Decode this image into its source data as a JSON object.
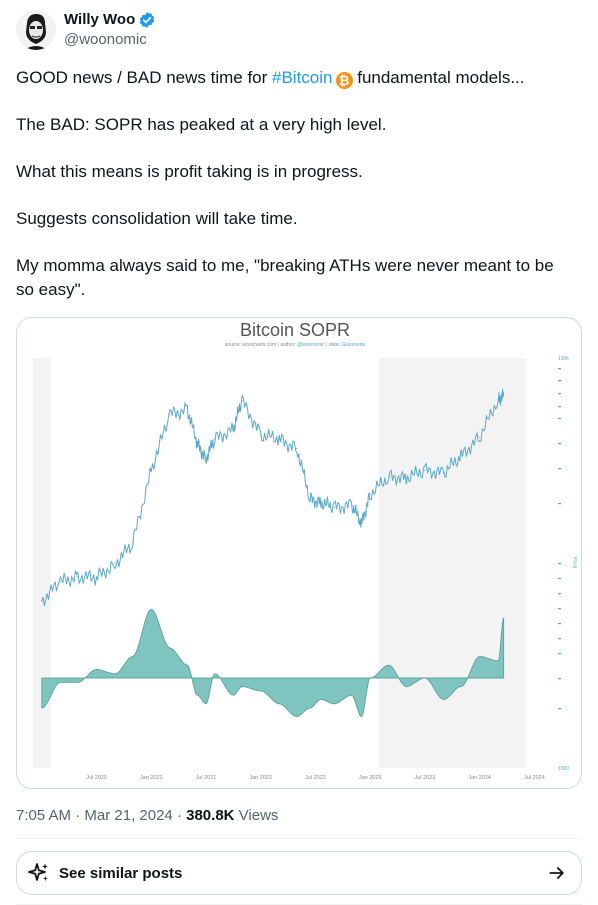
{
  "author": {
    "display_name": "Willy Woo",
    "handle": "@woonomic"
  },
  "tweet": {
    "line1_prefix": "GOOD news /  BAD news time for ",
    "hashtag": "#Bitcoin",
    "line1_suffix": " fundamental models...",
    "line2": "The BAD: SOPR has peaked at a very high level.",
    "line3": "What this means is profit taking is in progress.",
    "line4": "Suggests consolidation will take time.",
    "line5": "My momma always said to me, \"breaking ATHs were never meant to be so easy\"."
  },
  "chart_data": {
    "type": "area",
    "title": "Bitcoin SOPR",
    "subtitle_prefix": "source: woocharts.com | author: ",
    "subtitle_author": "@woonomic",
    "subtitle_mid": " | data: ",
    "subtitle_data": "Glassnode",
    "x_ticks": [
      "Jul 2020",
      "Jan 2021",
      "Jul 2021",
      "Jan 2022",
      "Jul 2022",
      "Jan 2023",
      "Jul 2023",
      "Jan 2024",
      "Jul 2024"
    ],
    "price_axis_label": "Price",
    "price_axis_top": "100k",
    "sopr_axis_bottom": "1000",
    "x": [
      2020.0,
      2020.17,
      2020.33,
      2020.5,
      2020.67,
      2020.83,
      2021.0,
      2021.17,
      2021.33,
      2021.42,
      2021.5,
      2021.58,
      2021.75,
      2021.83,
      2022.0,
      2022.17,
      2022.33,
      2022.45,
      2022.55,
      2022.67,
      2022.83,
      2022.92,
      2023.0,
      2023.17,
      2023.33,
      2023.5,
      2023.67,
      2023.83,
      2024.0,
      2024.17,
      2024.22
    ],
    "series": [
      {
        "values": [
          7200,
          8900,
          9400,
          9300,
          10800,
          13500,
          30000,
          55000,
          58000,
          40000,
          34000,
          42000,
          47000,
          64000,
          44000,
          42000,
          38000,
          22000,
          21000,
          20000,
          20500,
          16800,
          23000,
          28000,
          27500,
          30000,
          29000,
          35000,
          43000,
          65000,
          68000
        ]
      },
      {
        "values": [
          -0.07,
          -0.01,
          -0.01,
          0.02,
          0.01,
          0.05,
          0.16,
          0.07,
          0.03,
          -0.04,
          -0.06,
          0.01,
          -0.04,
          -0.02,
          -0.03,
          -0.06,
          -0.09,
          -0.07,
          -0.05,
          -0.06,
          -0.04,
          -0.09,
          0.0,
          0.03,
          -0.02,
          0.0,
          -0.05,
          -0.02,
          0.05,
          0.04,
          0.14
        ]
      }
    ],
    "colors": {
      "price_line": "#5aa9c8",
      "sopr_fill": "#7fc4be",
      "sopr_stroke": "#4f9e97",
      "shade": "#f3f3f3"
    }
  },
  "meta": {
    "time": "7:05 AM",
    "separator": " · ",
    "date": "Mar 21, 2024",
    "views_count": "380.8K",
    "views_label": " Views"
  },
  "similar": {
    "label": "See similar posts",
    "icon": "sparkle-icon",
    "arrow_icon": "arrow-right-icon"
  }
}
